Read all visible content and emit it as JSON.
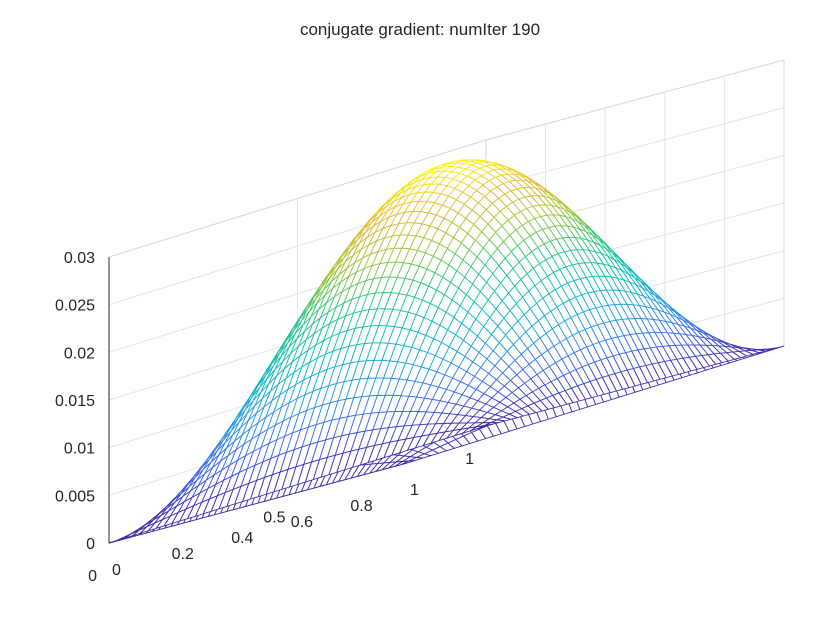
{
  "chart_data": {
    "type": "surface-mesh",
    "title": "conjugate gradient: numIter 190",
    "xlabel": "",
    "ylabel": "",
    "zlabel": "",
    "xlim": [
      0,
      1
    ],
    "ylim": [
      0,
      1
    ],
    "zlim": [
      0,
      0.03
    ],
    "x_ticks": [
      "0",
      "0.2",
      "0.4",
      "0.6",
      "0.8",
      "1"
    ],
    "y_ticks": [
      "0",
      "0.5",
      "1"
    ],
    "z_ticks": [
      "0",
      "0.005",
      "0.01",
      "0.015",
      "0.02",
      "0.025",
      "0.03"
    ],
    "x_tick_values": [
      0,
      0.2,
      0.4,
      0.6,
      0.8,
      1
    ],
    "y_tick_values": [
      0,
      0.5,
      1
    ],
    "z_tick_values": [
      0,
      0.005,
      0.01,
      0.015,
      0.02,
      0.025,
      0.03
    ],
    "z_max": 0.0295,
    "mesh_resolution": 48,
    "grid": true,
    "colormap": [
      "#3e26a8",
      "#4268f5",
      "#2b9fe6",
      "#12bec1",
      "#2dc888",
      "#9dc93b",
      "#f0b83a",
      "#f9fb15"
    ]
  }
}
